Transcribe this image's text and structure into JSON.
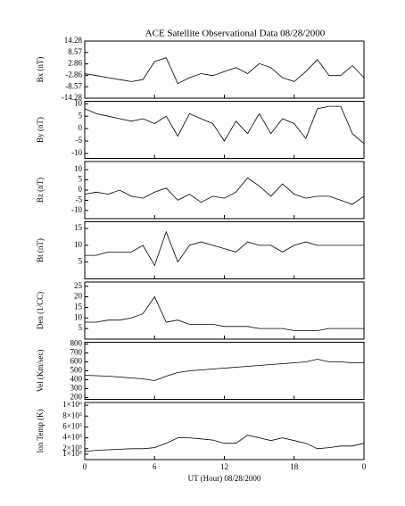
{
  "chart_data": [
    {
      "type": "line",
      "title": "ACE Satellite Observational Data  08/28/2000",
      "y_label": "Bx (nT)",
      "color": "#000000",
      "x": [
        0,
        1,
        2,
        3,
        4,
        5,
        6,
        7,
        8,
        9,
        10,
        11,
        12,
        13,
        14,
        15,
        16,
        17,
        18,
        19,
        20,
        21,
        22,
        23,
        24
      ],
      "values": [
        -2,
        -3,
        -4,
        -5,
        -6,
        -5,
        4,
        6,
        -7,
        -4,
        -2,
        -3,
        -1,
        1,
        -2,
        3,
        1,
        -4,
        -6,
        -1,
        5,
        -3,
        -3,
        2,
        -4
      ],
      "xlim": [
        0,
        24
      ],
      "ylim": [
        -14.28,
        14.28
      ],
      "yticks": [
        14.28,
        8.57,
        2.86,
        -2.86,
        -8.57,
        -14.28
      ]
    },
    {
      "type": "line",
      "y_label": "By (nT)",
      "color": "#000000",
      "x": [
        0,
        1,
        2,
        3,
        4,
        5,
        6,
        7,
        8,
        9,
        10,
        11,
        12,
        13,
        14,
        15,
        16,
        17,
        18,
        19,
        20,
        21,
        22,
        23,
        24
      ],
      "values": [
        8,
        6,
        5,
        4,
        3,
        4,
        2,
        5,
        -3,
        6,
        4,
        2,
        -5,
        3,
        -2,
        6,
        -2,
        4,
        2,
        -4,
        8,
        9,
        9,
        -2,
        -6
      ],
      "xlim": [
        0,
        24
      ],
      "ylim": [
        -12,
        11
      ],
      "yticks": [
        10,
        5,
        0,
        -5,
        -10
      ]
    },
    {
      "type": "line",
      "y_label": "Bz (nT)",
      "color": "#000000",
      "x": [
        0,
        1,
        2,
        3,
        4,
        5,
        6,
        7,
        8,
        9,
        10,
        11,
        12,
        13,
        14,
        15,
        16,
        17,
        18,
        19,
        20,
        21,
        22,
        23,
        24
      ],
      "values": [
        -2,
        -1,
        -2,
        0,
        -3,
        -4,
        -1,
        1,
        -5,
        -2,
        -6,
        -3,
        -4,
        -1,
        6,
        2,
        -3,
        3,
        -2,
        -4,
        -3,
        -3,
        -5,
        -7,
        -3
      ],
      "xlim": [
        0,
        24
      ],
      "ylim": [
        -14,
        14
      ],
      "yticks": [
        10,
        5,
        0,
        -5,
        -10
      ]
    },
    {
      "type": "line",
      "y_label": "Bt (nT)",
      "color": "#000000",
      "x": [
        0,
        1,
        2,
        3,
        4,
        5,
        6,
        7,
        8,
        9,
        10,
        11,
        12,
        13,
        14,
        15,
        16,
        17,
        18,
        19,
        20,
        21,
        22,
        23,
        24
      ],
      "values": [
        7,
        7,
        8,
        8,
        8,
        10,
        4,
        14,
        5,
        10,
        11,
        10,
        9,
        8,
        11,
        10,
        10,
        8,
        10,
        11,
        10,
        10,
        10,
        10,
        10
      ],
      "xlim": [
        0,
        24
      ],
      "ylim": [
        0,
        17
      ],
      "yticks": [
        15,
        10,
        5
      ]
    },
    {
      "type": "line",
      "y_label": "Den (1/CC)",
      "color": "#000000",
      "x": [
        0,
        1,
        2,
        3,
        4,
        5,
        6,
        7,
        8,
        9,
        10,
        11,
        12,
        13,
        14,
        15,
        16,
        17,
        18,
        19,
        20,
        21,
        22,
        23,
        24
      ],
      "values": [
        8,
        8,
        9,
        9,
        10,
        12,
        20,
        8,
        9,
        7,
        7,
        7,
        6,
        6,
        6,
        5,
        5,
        5,
        4,
        4,
        4,
        5,
        5,
        5,
        5
      ],
      "xlim": [
        0,
        24
      ],
      "ylim": [
        0,
        27
      ],
      "yticks": [
        25,
        20,
        15,
        10,
        5
      ]
    },
    {
      "type": "line",
      "y_label": "Vel (Km/sec)",
      "color": "#000000",
      "x": [
        0,
        1,
        2,
        3,
        4,
        5,
        6,
        7,
        8,
        9,
        10,
        11,
        12,
        13,
        14,
        15,
        16,
        17,
        18,
        19,
        20,
        21,
        22,
        23,
        24
      ],
      "values": [
        450,
        445,
        440,
        430,
        420,
        410,
        390,
        440,
        480,
        500,
        510,
        520,
        530,
        540,
        550,
        560,
        570,
        580,
        590,
        600,
        630,
        600,
        600,
        590,
        590
      ],
      "xlim": [
        0,
        24
      ],
      "ylim": [
        180,
        820
      ],
      "yticks": [
        800,
        700,
        600,
        500,
        400,
        300,
        200
      ]
    },
    {
      "type": "line",
      "y_label": "Ion Temp (K)",
      "x_label": "UT (Hour)  08/28/2000",
      "color": "#000000",
      "x": [
        0,
        1,
        2,
        3,
        4,
        5,
        6,
        7,
        8,
        9,
        10,
        11,
        12,
        13,
        14,
        15,
        16,
        17,
        18,
        19,
        20,
        21,
        22,
        23,
        24
      ],
      "values": [
        150000,
        170000,
        180000,
        190000,
        200000,
        200000,
        220000,
        300000,
        400000,
        400000,
        380000,
        360000,
        300000,
        300000,
        450000,
        400000,
        350000,
        400000,
        350000,
        300000,
        200000,
        220000,
        250000,
        250000,
        300000
      ],
      "xlim": [
        0,
        24
      ],
      "ylim": [
        0,
        1050000
      ],
      "yticks": [
        {
          "value": 1000000,
          "label": "1×10⁶"
        },
        {
          "value": 800000,
          "label": "8×10⁵"
        },
        {
          "value": 600000,
          "label": "6×10⁵"
        },
        {
          "value": 400000,
          "label": "4×10⁵"
        },
        {
          "value": 200000,
          "label": "2×10⁵"
        },
        {
          "value": 100000,
          "label": "1×10⁵"
        }
      ],
      "xticks": [
        0,
        6,
        12,
        18,
        {
          "value": 24,
          "label": "0"
        }
      ]
    }
  ]
}
